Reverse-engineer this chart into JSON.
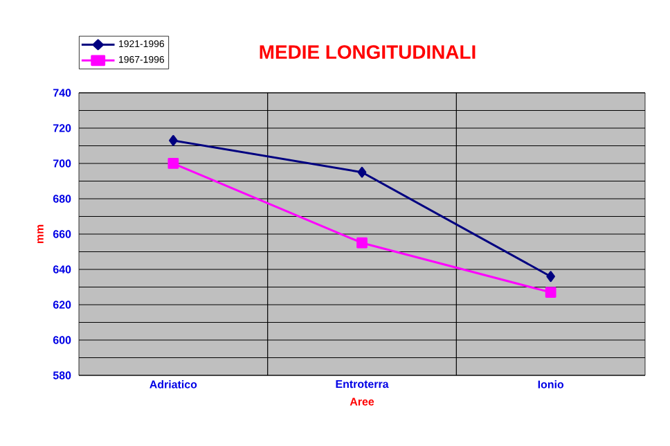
{
  "chart_data": {
    "type": "line",
    "title": "MEDIE LONGITUDINALI",
    "xlabel": "Aree",
    "ylabel": "mm",
    "categories": [
      "Adriatico",
      "Entroterra",
      "Ionio"
    ],
    "series": [
      {
        "name": "1921-1996",
        "color": "#000080",
        "marker": "diamond",
        "values": [
          713,
          695,
          636
        ]
      },
      {
        "name": "1967-1996",
        "color": "#ff00ff",
        "marker": "square",
        "values": [
          700,
          655,
          627
        ]
      }
    ],
    "ylim": [
      580,
      740
    ],
    "yticks": [
      580,
      {
        "value": 590,
        "label": null
      },
      600,
      {
        "value": 610,
        "label": null
      },
      620,
      {
        "value": 630,
        "label": null
      },
      640,
      {
        "value": 650,
        "label": null
      },
      660,
      {
        "value": 670,
        "label": null
      },
      680,
      {
        "value": 690,
        "label": null
      },
      700,
      {
        "value": 710,
        "label": null
      },
      720,
      {
        "value": 730,
        "label": null
      },
      740
    ],
    "grid": true,
    "legend": "top left",
    "line_style": "solid"
  }
}
